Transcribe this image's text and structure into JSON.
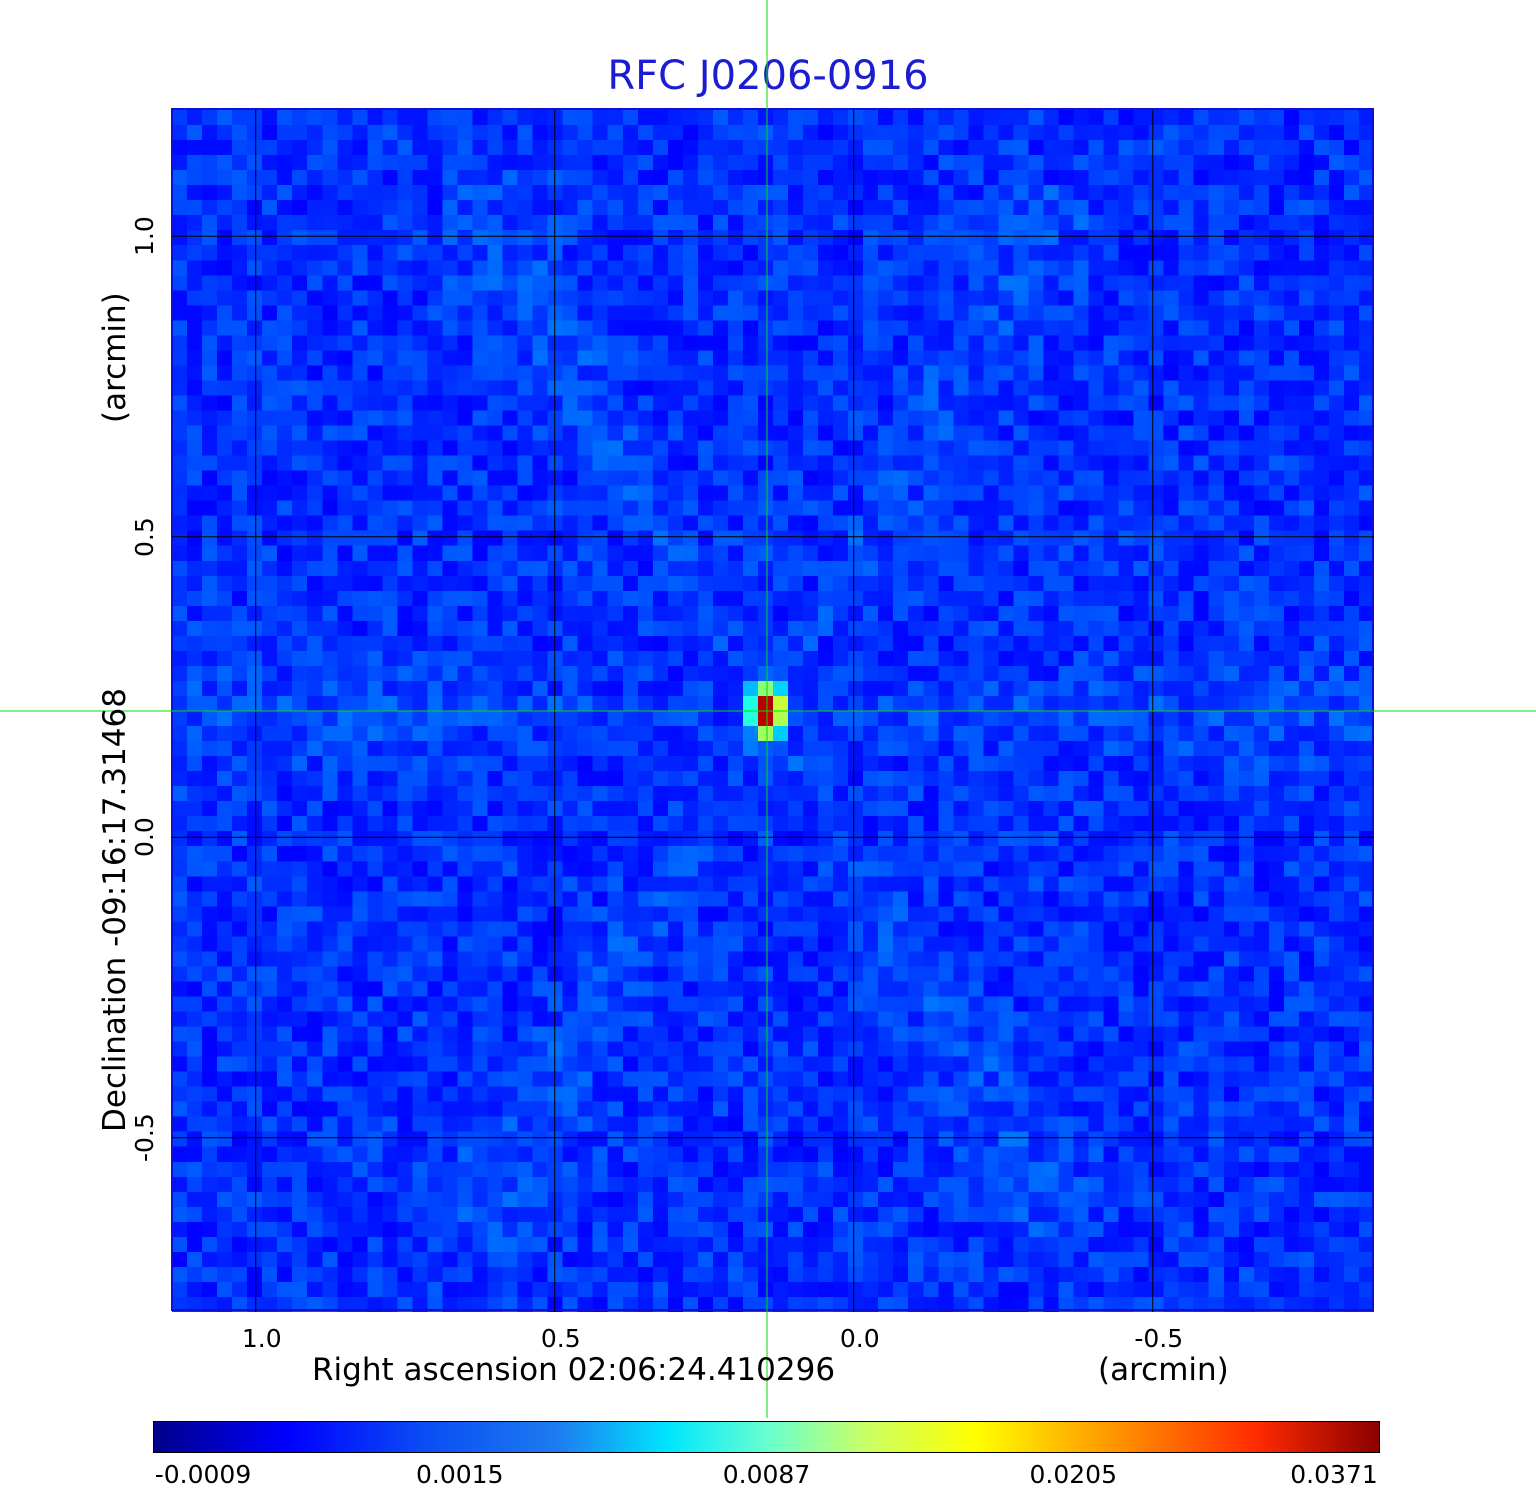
{
  "chart_data": {
    "type": "heatmap",
    "title": "RFC J0206-0916",
    "xlabel": "Right ascension  02:06:24.410296",
    "xunit": "(arcmin)",
    "ylabel": "Declination  -09:16:17.31468",
    "yunit": "(arcmin)",
    "xlim": [
      1.14,
      -0.87
    ],
    "ylim": [
      -0.79,
      1.21
    ],
    "x_ticks": [
      {
        "value": 1.0,
        "label": "1.0"
      },
      {
        "value": 0.5,
        "label": "0.5"
      },
      {
        "value": 0.0,
        "label": "0.0"
      },
      {
        "value": -0.5,
        "label": "-0.5"
      }
    ],
    "y_ticks": [
      {
        "value": 1.0,
        "label": "1.0"
      },
      {
        "value": 0.5,
        "label": "0.5"
      },
      {
        "value": 0.0,
        "label": "0.0"
      },
      {
        "value": -0.5,
        "label": "-0.5"
      }
    ],
    "grid": true,
    "crosshair": {
      "x": 0.145,
      "y": 0.21,
      "color": "#00e000"
    },
    "source_peak": {
      "x": 0.145,
      "y": 0.21,
      "value": 0.0371
    },
    "colorbar": {
      "colormap": "jet",
      "ticks": [
        "-0.0009",
        "0.0015",
        "0.0087",
        "0.0205",
        "0.0371"
      ]
    }
  }
}
